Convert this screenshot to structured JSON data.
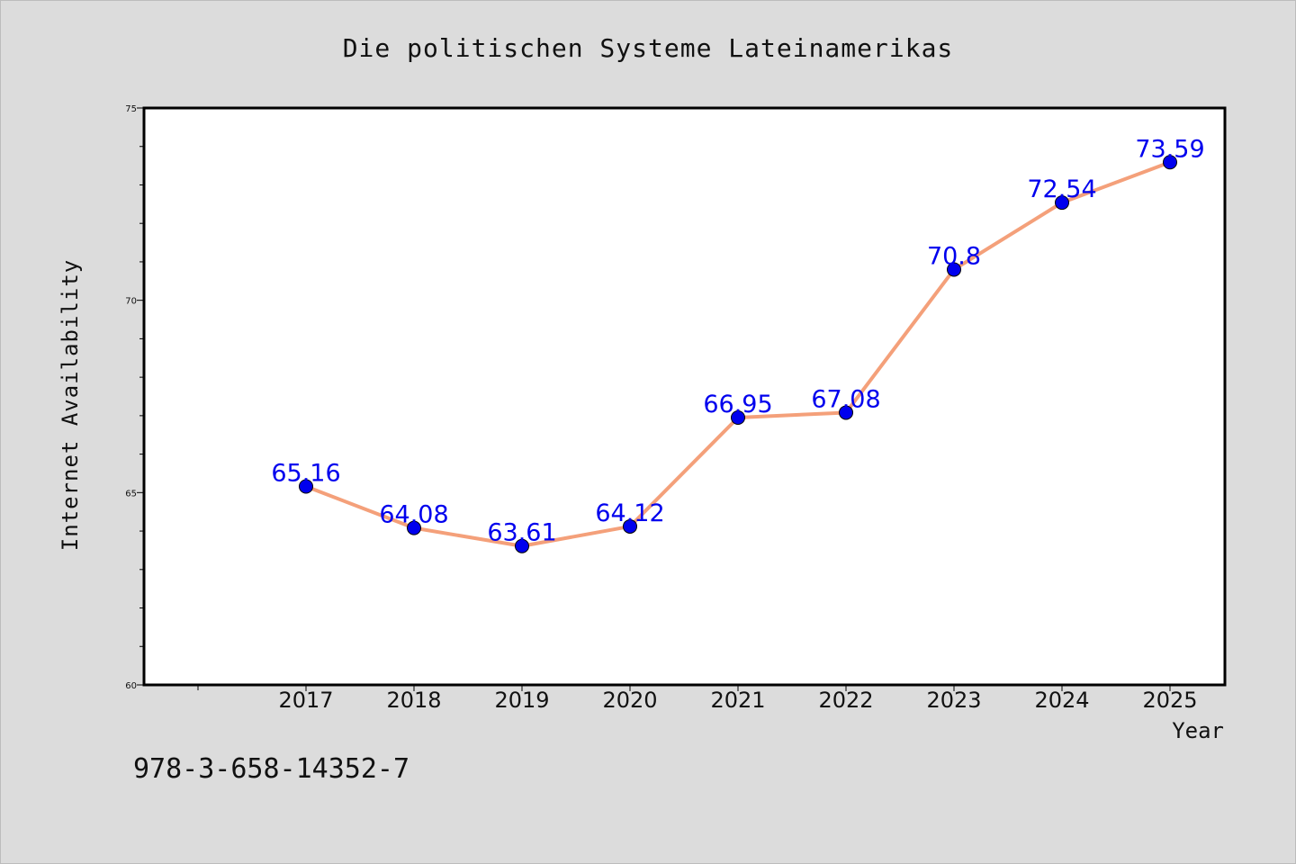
{
  "chart_data": {
    "type": "line",
    "title": "Die politischen Systeme Lateinamerikas",
    "xlabel": "Year",
    "ylabel": "Internet Availability",
    "categories": [
      "2017",
      "2018",
      "2019",
      "2020",
      "2021",
      "2022",
      "2023",
      "2024",
      "2025"
    ],
    "series": [
      {
        "values": [
          65.16,
          64.08,
          63.61,
          64.12,
          66.95,
          67.08,
          70.8,
          72.54,
          73.59
        ],
        "labels": [
          "65.16",
          "64.08",
          "63.61",
          "64.12",
          "66.95",
          "67.08",
          "70.8",
          "72.54",
          "73.59"
        ]
      }
    ],
    "ylim": [
      60,
      75
    ],
    "yticks": [
      60,
      65,
      70,
      75
    ],
    "ytick_labels": [
      "60",
      "65",
      "70",
      "75"
    ],
    "grid": false,
    "line_color": "#f4a07a",
    "marker_color": "#0000ee",
    "label_color": "#0000ee"
  },
  "footer_text": "978-3-658-14352-7"
}
